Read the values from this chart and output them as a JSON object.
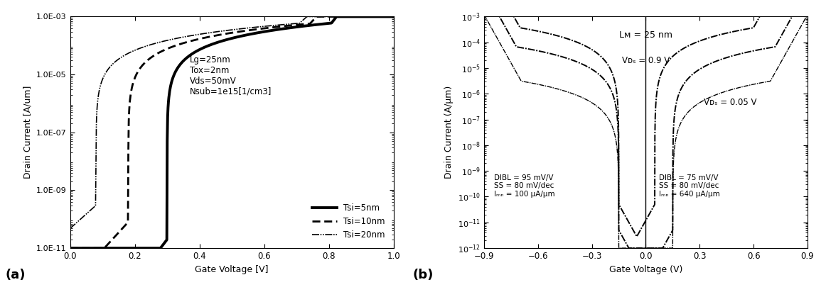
{
  "panel_a": {
    "xlabel": "Gate Voltage [V]",
    "ylabel": "Drain Current [A/um]",
    "label": "(a)",
    "xlim": [
      0,
      1
    ],
    "ylim_log": [
      -11,
      -3
    ],
    "annotation": "Lg=25nm\nTox=2nm\nVds=50mV\nNsub=1e15[1/cm3]",
    "yticks": [
      1e-11,
      1e-09,
      1e-07,
      1e-05,
      0.001
    ],
    "ytick_labels": [
      "1.0E-11",
      "1.0E-09",
      "1.0E-07",
      "1.0E-05",
      "1.0E-03"
    ],
    "xticks": [
      0,
      0.2,
      0.4,
      0.6,
      0.8,
      1.0
    ],
    "legend": [
      "Tsi=5nm",
      "Tsi=10nm",
      "Tsi=20nm"
    ]
  },
  "panel_b": {
    "xlabel": "Gate Voltage (V)",
    "ylabel": "Drain Current (A/μm)",
    "label": "(b)",
    "xlim": [
      -0.9,
      0.9
    ],
    "ylim_log": [
      -12,
      -3
    ],
    "xticks": [
      -0.9,
      -0.6,
      -0.3,
      0.0,
      0.3,
      0.6,
      0.9
    ],
    "annotation_left": "DIBL = 95 mV/V\nSS = 80 mV/dec\nIₘₙ = 100 μA/μm",
    "annotation_right": "DIBL = 75 mV/V\nSS = 80 mV/dec\nIₘₙ = 640 μA/μm",
    "annotation_top": "Lᴍ = 25 nm",
    "vds_high": "Vᴅₛ = 0.9 V",
    "vds_low": "Vᴅₛ = 0.05 V"
  },
  "bg_color": "#ffffff"
}
